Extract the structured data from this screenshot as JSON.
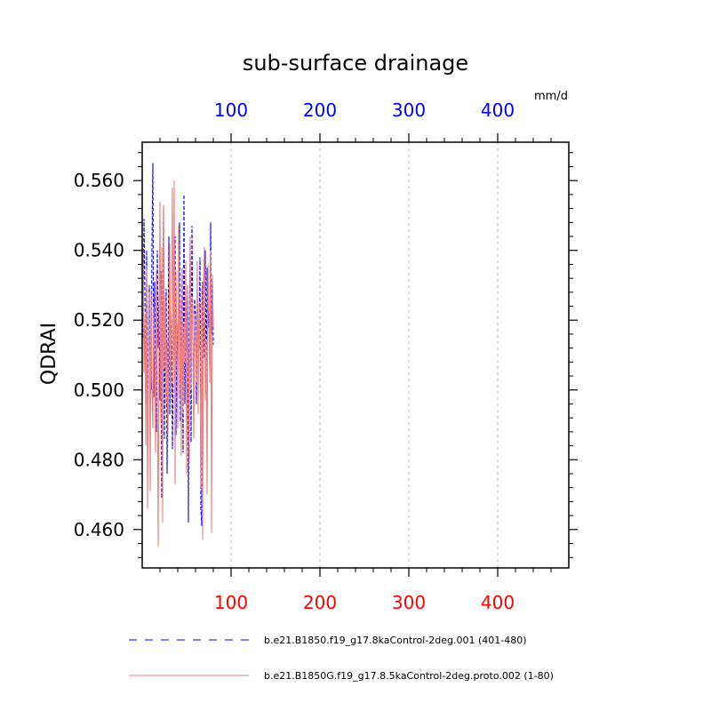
{
  "chart_data": {
    "type": "line",
    "title": "sub-surface drainage",
    "ylabel": "QDRAI",
    "units": "mm/d",
    "xlim": [
      0,
      480
    ],
    "ylim": [
      0.449,
      0.571
    ],
    "x_ticks_bottom": [
      100,
      200,
      300,
      400
    ],
    "x_ticks_top": [
      100,
      200,
      300,
      400
    ],
    "y_ticks": [
      0.46,
      0.48,
      0.5,
      0.52,
      0.54,
      0.56
    ],
    "y_tick_labels": [
      "0.460",
      "0.480",
      "0.500",
      "0.520",
      "0.540",
      "0.560"
    ],
    "grid": "dashed vertical lines at x ticks",
    "top_axis_color": "#0000ff",
    "bottom_axis_color": "#ff0000",
    "series": [
      {
        "name": "b.e21.B1850.f19_g17.8kaControl-2deg.001 (401-480)",
        "color": "#0000ff",
        "dash": "dashed",
        "x": [
          1,
          2,
          3,
          4,
          5,
          6,
          7,
          8,
          9,
          10,
          11,
          12,
          13,
          14,
          15,
          16,
          17,
          18,
          19,
          20,
          21,
          22,
          23,
          24,
          25,
          26,
          27,
          28,
          29,
          30,
          31,
          32,
          33,
          34,
          35,
          36,
          37,
          38,
          39,
          40,
          41,
          42,
          43,
          44,
          45,
          46,
          47,
          48,
          49,
          50,
          51,
          52,
          53,
          54,
          55,
          56,
          57,
          58,
          59,
          60,
          61,
          62,
          63,
          64,
          65,
          66,
          67,
          68,
          69,
          70,
          71,
          72,
          73,
          74,
          75,
          76,
          77,
          78,
          79,
          80
        ],
        "y": [
          0.515,
          0.549,
          0.528,
          0.496,
          0.54,
          0.484,
          0.518,
          0.53,
          0.51,
          0.5,
          0.542,
          0.565,
          0.498,
          0.531,
          0.505,
          0.488,
          0.54,
          0.512,
          0.527,
          0.497,
          0.534,
          0.469,
          0.52,
          0.552,
          0.486,
          0.515,
          0.529,
          0.476,
          0.509,
          0.544,
          0.493,
          0.512,
          0.522,
          0.483,
          0.505,
          0.528,
          0.544,
          0.487,
          0.519,
          0.506,
          0.526,
          0.548,
          0.491,
          0.515,
          0.535,
          0.482,
          0.556,
          0.496,
          0.528,
          0.511,
          0.53,
          0.462,
          0.52,
          0.542,
          0.485,
          0.547,
          0.515,
          0.491,
          0.526,
          0.522,
          0.496,
          0.529,
          0.515,
          0.512,
          0.538,
          0.466,
          0.461,
          0.531,
          0.52,
          0.509,
          0.54,
          0.499,
          0.535,
          0.518,
          0.524,
          0.507,
          0.548,
          0.516,
          0.532,
          0.513
        ]
      },
      {
        "name": "b.e21.B1850G.f19_g17.8.5kaControl-2deg.proto.002 (1-80)",
        "color": "#f08080",
        "dash": "solid",
        "x": [
          1,
          2,
          3,
          4,
          5,
          6,
          7,
          8,
          9,
          10,
          11,
          12,
          13,
          14,
          15,
          16,
          17,
          18,
          19,
          20,
          21,
          22,
          23,
          24,
          25,
          26,
          27,
          28,
          29,
          30,
          31,
          32,
          33,
          34,
          35,
          36,
          37,
          38,
          39,
          40,
          41,
          42,
          43,
          44,
          45,
          46,
          47,
          48,
          49,
          50,
          51,
          52,
          53,
          54,
          55,
          56,
          57,
          58,
          59,
          60,
          61,
          62,
          63,
          64,
          65,
          66,
          67,
          68,
          69,
          70,
          71,
          72,
          73,
          74,
          75,
          76,
          77,
          78,
          79,
          80
        ],
        "y": [
          0.54,
          0.505,
          0.522,
          0.484,
          0.535,
          0.466,
          0.511,
          0.528,
          0.471,
          0.528,
          0.501,
          0.489,
          0.524,
          0.509,
          0.482,
          0.534,
          0.499,
          0.455,
          0.519,
          0.554,
          0.491,
          0.541,
          0.462,
          0.553,
          0.506,
          0.527,
          0.496,
          0.514,
          0.487,
          0.508,
          0.542,
          0.497,
          0.523,
          0.558,
          0.502,
          0.56,
          0.473,
          0.534,
          0.512,
          0.489,
          0.547,
          0.498,
          0.526,
          0.481,
          0.535,
          0.494,
          0.519,
          0.508,
          0.537,
          0.476,
          0.53,
          0.509,
          0.479,
          0.544,
          0.5,
          0.527,
          0.518,
          0.486,
          0.522,
          0.514,
          0.502,
          0.537,
          0.493,
          0.525,
          0.511,
          0.472,
          0.529,
          0.457,
          0.532,
          0.541,
          0.497,
          0.514,
          0.47,
          0.536,
          0.524,
          0.502,
          0.54,
          0.459,
          0.533,
          0.518
        ]
      }
    ]
  }
}
